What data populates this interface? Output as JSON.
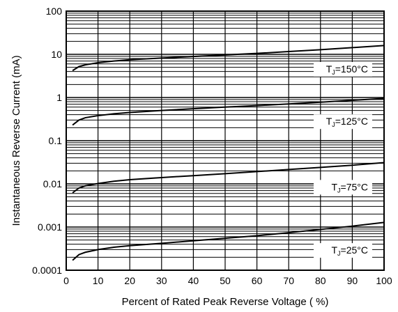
{
  "chart_data": {
    "type": "line",
    "xlabel": "Percent of Rated Peak Reverse Voltage ( %)",
    "ylabel": "Instantaneous Reverse Current (mA)",
    "xlim": [
      0,
      100
    ],
    "ylim": [
      0.0001,
      100
    ],
    "yscale": "log",
    "grid": true,
    "x_ticks": [
      "0",
      "10",
      "20",
      "30",
      "40",
      "50",
      "60",
      "70",
      "80",
      "90",
      "100"
    ],
    "y_ticks": [
      "0.0001",
      "0.001",
      "0.01",
      "0.1",
      "1",
      "10",
      "100"
    ],
    "x": [
      2,
      4,
      6,
      10,
      15,
      20,
      30,
      40,
      50,
      60,
      70,
      80,
      90,
      100
    ],
    "series": [
      {
        "name": "T_J=150°C",
        "label_main": "T",
        "label_sub": "J",
        "label_rest": "=150°C",
        "values": [
          4.2,
          5.2,
          5.7,
          6.4,
          7.0,
          7.5,
          8.2,
          8.9,
          9.7,
          10.5,
          11.6,
          12.8,
          14.3,
          16.0
        ]
      },
      {
        "name": "T_J=125°C",
        "label_main": "T",
        "label_sub": "J",
        "label_rest": "=125°C",
        "values": [
          0.23,
          0.3,
          0.34,
          0.38,
          0.42,
          0.45,
          0.5,
          0.55,
          0.6,
          0.65,
          0.71,
          0.78,
          0.86,
          0.95
        ]
      },
      {
        "name": "T_J=75°C",
        "label_main": "T",
        "label_sub": "J",
        "label_rest": "=75°C",
        "values": [
          0.0062,
          0.008,
          0.009,
          0.0102,
          0.0115,
          0.0125,
          0.014,
          0.0155,
          0.0172,
          0.0192,
          0.0215,
          0.024,
          0.027,
          0.031
        ]
      },
      {
        "name": "T_J=25°C",
        "label_main": "T",
        "label_sub": "J",
        "label_rest": "=25°C",
        "values": [
          0.00017,
          0.00023,
          0.00026,
          0.0003,
          0.00034,
          0.00037,
          0.00042,
          0.00048,
          0.00055,
          0.00063,
          0.00074,
          0.00088,
          0.00105,
          0.00128
        ]
      }
    ]
  }
}
